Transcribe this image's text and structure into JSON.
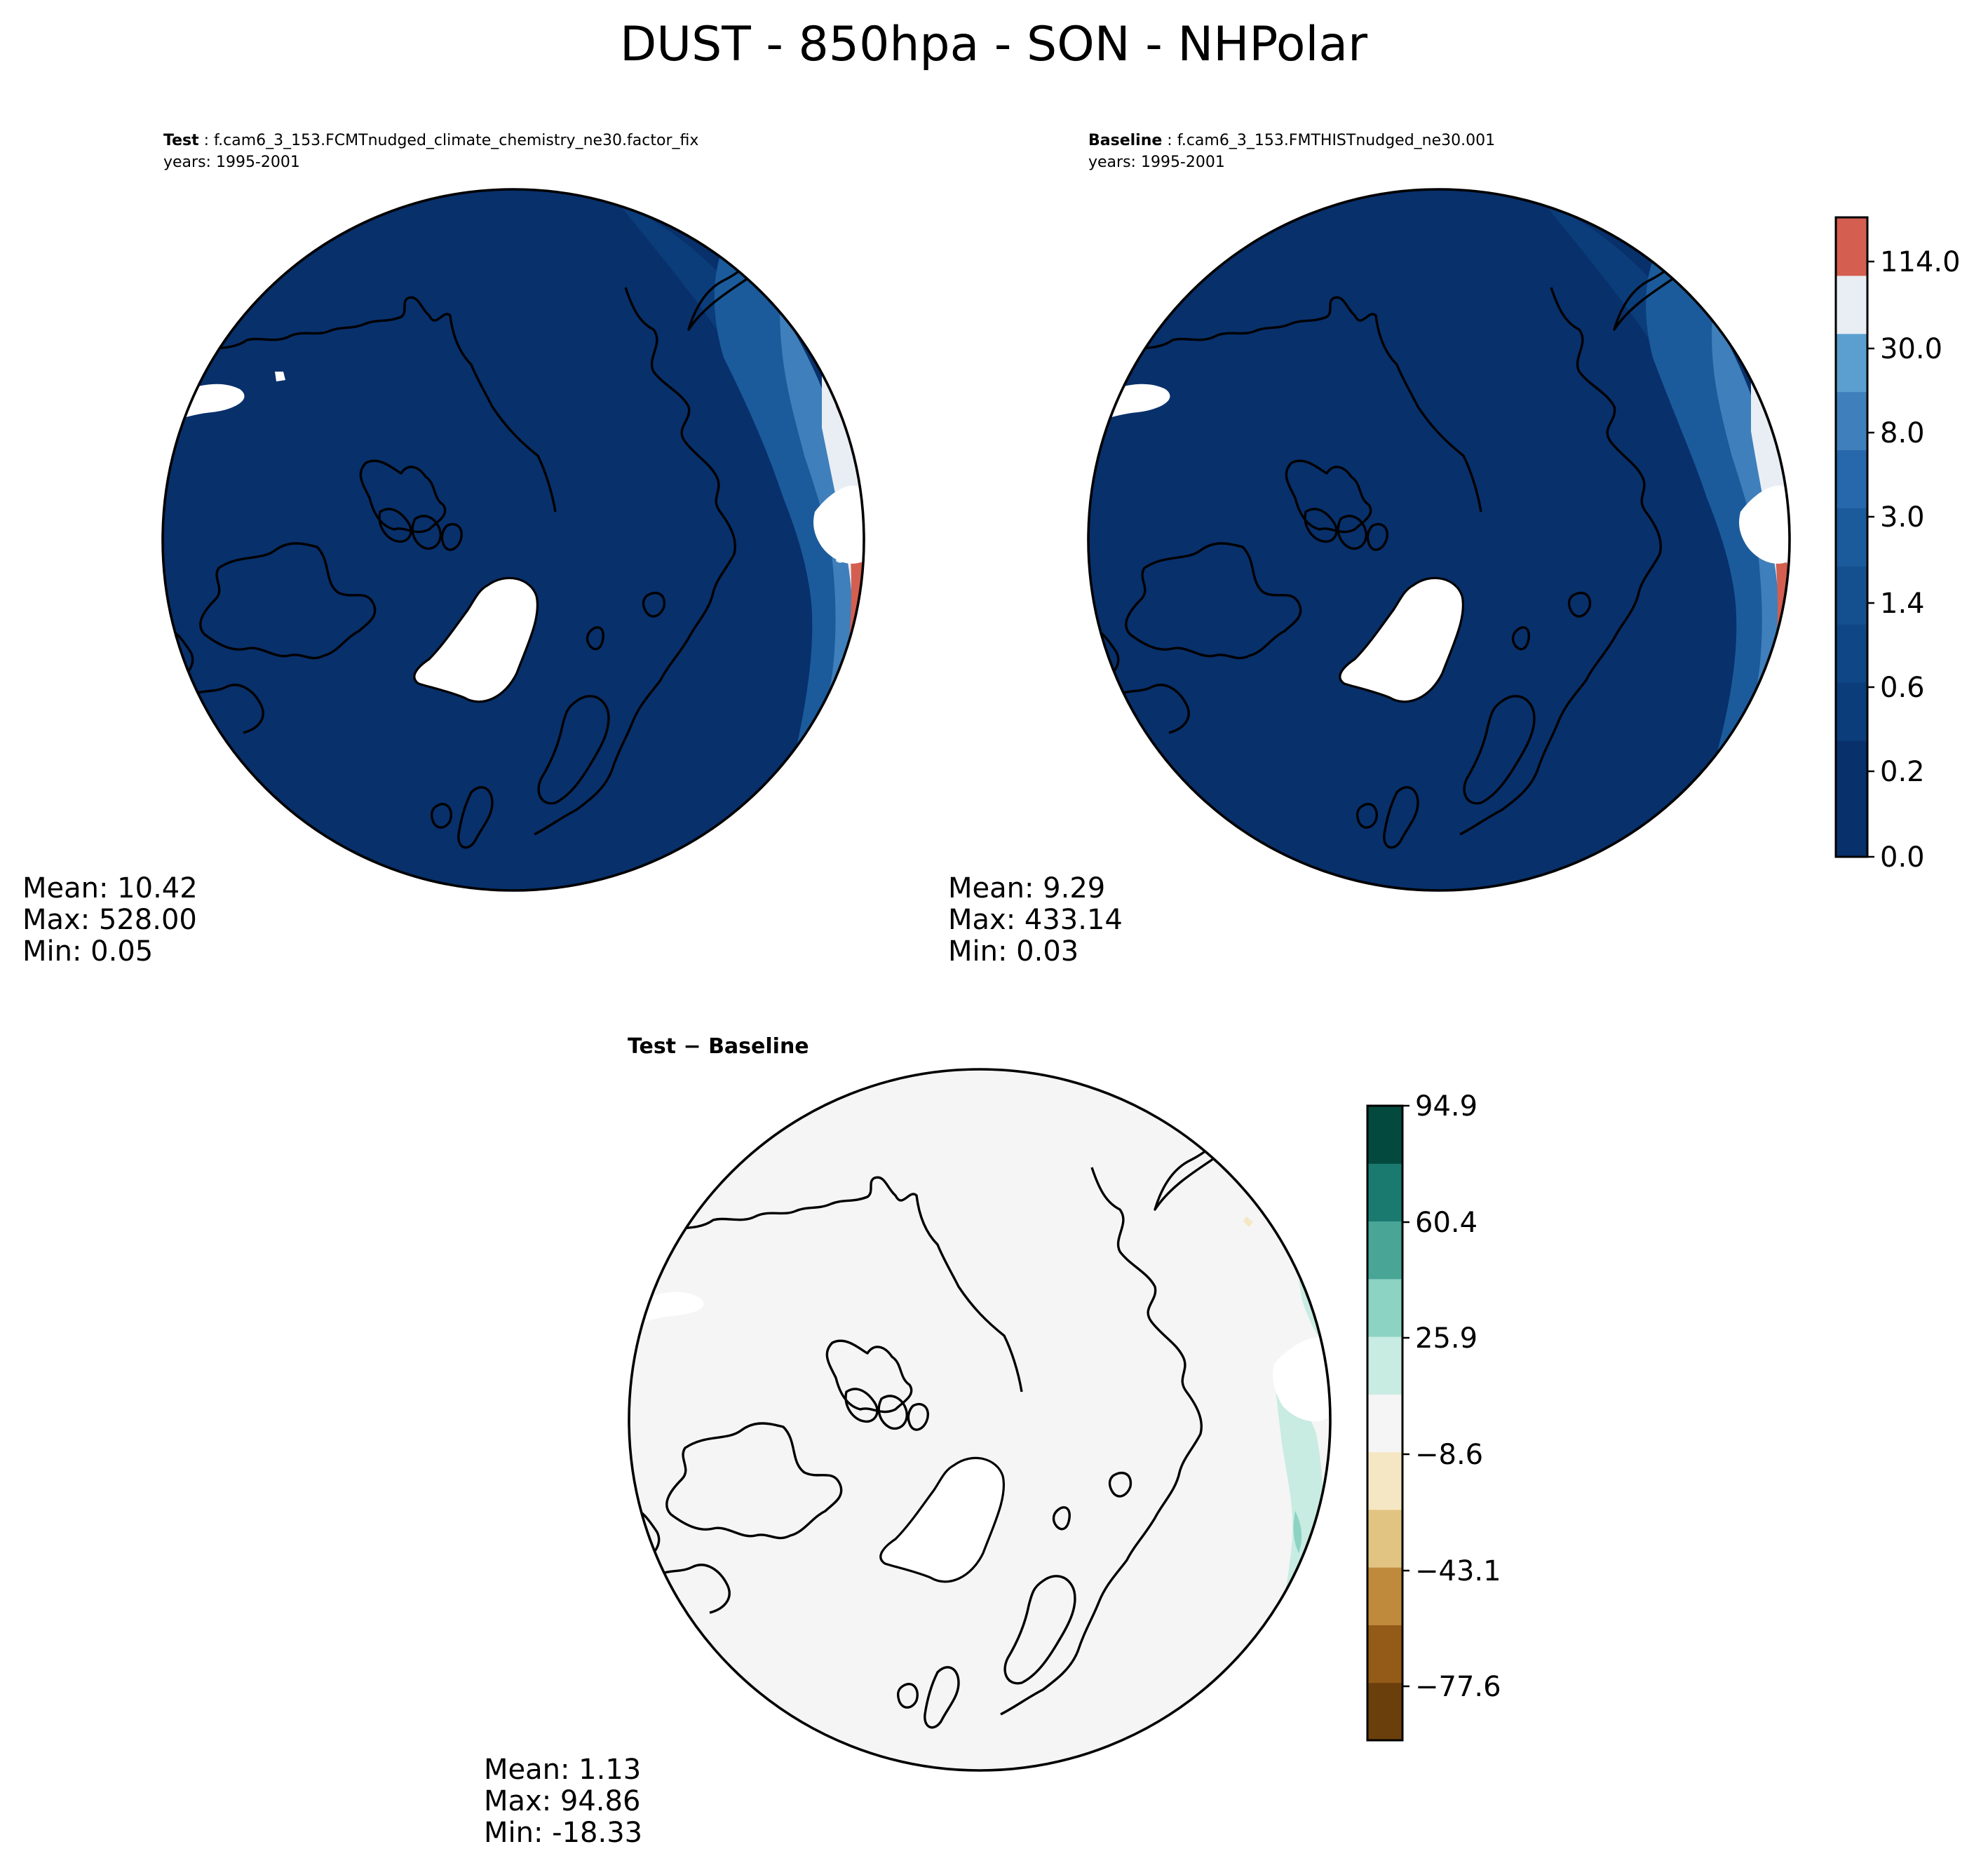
{
  "figure": {
    "title": "DUST - 850hpa - SON - NHPolar"
  },
  "panels": {
    "test": {
      "label": "Test",
      "case": "f.cam6_3_153.FCMTnudged_climate_chemistry_ne30.factor_fix",
      "years": "years: 1995-2001",
      "stats": {
        "mean": "Mean: 10.42",
        "max": "Max: 528.00",
        "min": "Min:  0.05"
      }
    },
    "baseline": {
      "label": "Baseline",
      "case": "f.cam6_3_153.FMTHISTnudged_ne30.001",
      "years": "years: 1995-2001",
      "stats": {
        "mean": "Mean:  9.29",
        "max": "Max: 433.14",
        "min": "Min:  0.03"
      }
    },
    "diff": {
      "title_a": "Test",
      "title_op": " − ",
      "title_b": "Baseline",
      "stats": {
        "mean": "Mean:  1.13",
        "max": "Max: 94.86",
        "min": "Min: -18.33"
      }
    }
  },
  "colorbars": {
    "main": {
      "ticks": [
        "114.0",
        "30.0",
        "8.0",
        "3.0",
        "1.4",
        "0.6",
        "0.2",
        "0.0"
      ],
      "colors": [
        "#08306b",
        "#08306b",
        "#0b3d7a",
        "#0f4685",
        "#14508f",
        "#1b5b9c",
        "#2767ab",
        "#3f7fbb",
        "#5a9fcf",
        "#e8eef4",
        "#d45e4f"
      ]
    },
    "diff": {
      "ticks": [
        "94.9",
        "60.4",
        "25.9",
        "−8.6",
        "−43.1",
        "−77.6"
      ],
      "colors": [
        "#6b3f0c",
        "#945a18",
        "#c08a3c",
        "#e2c482",
        "#f5e7c3",
        "#f4f5f4",
        "#c8ebe2",
        "#8cd3c3",
        "#49a596",
        "#1a7a70",
        "#03493e"
      ]
    }
  },
  "chart_data": {
    "type": "heatmap",
    "title": "DUST - 850hpa - SON - NHPolar",
    "projection": "North polar stereographic",
    "panels": [
      {
        "name": "Test",
        "mean": 10.42,
        "max": 528.0,
        "min": 0.05
      },
      {
        "name": "Baseline",
        "mean": 9.29,
        "max": 433.14,
        "min": 0.03
      },
      {
        "name": "Test − Baseline",
        "mean": 1.13,
        "max": 94.86,
        "min": -18.33
      }
    ],
    "main_colorbar_levels": [
      0.0,
      0.2,
      0.6,
      1.4,
      3.0,
      8.0,
      30.0,
      114.0
    ],
    "diff_colorbar_levels": [
      -77.6,
      -43.1,
      -8.6,
      25.9,
      60.4,
      94.9
    ]
  }
}
